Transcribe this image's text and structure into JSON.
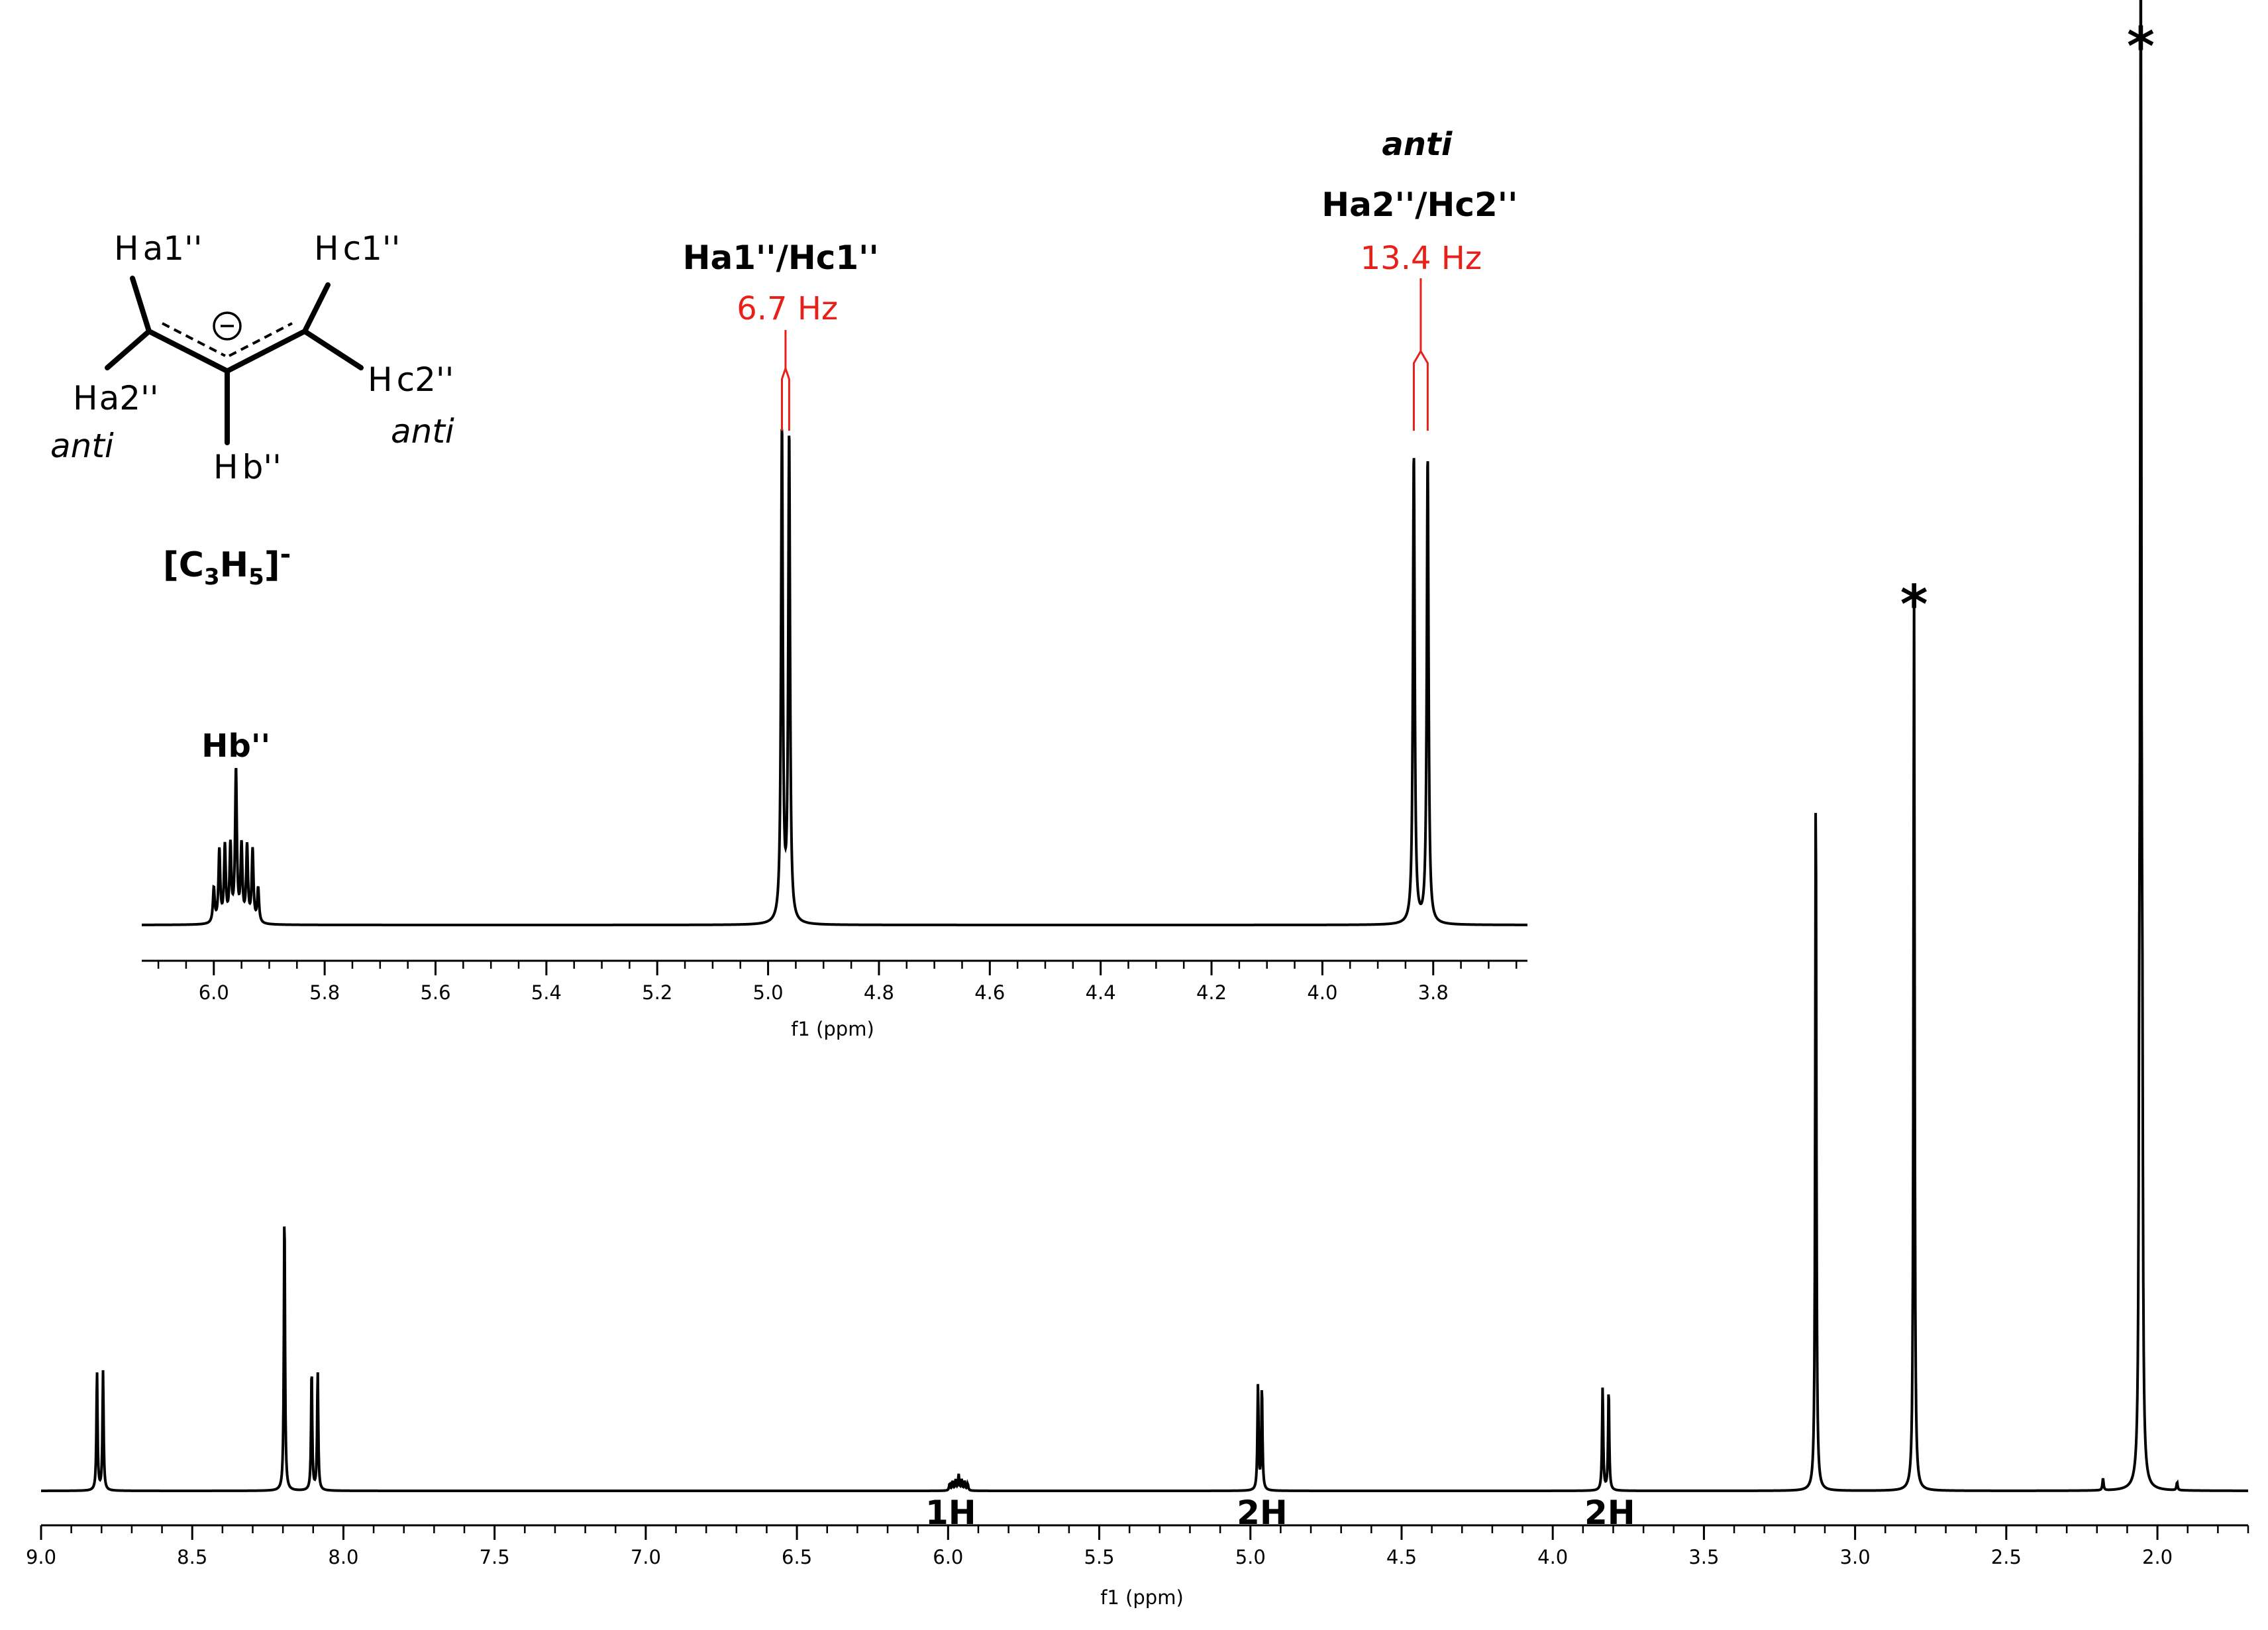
{
  "chart_data": [
    {
      "id": "main",
      "type": "line",
      "xlabel": "f1 (ppm)",
      "x_reversed": true,
      "xlim": [
        9.0,
        1.7
      ],
      "ticks_major": [
        9.0,
        8.5,
        8.0,
        7.5,
        7.0,
        6.5,
        6.0,
        5.5,
        5.0,
        4.5,
        4.0,
        3.5,
        3.0,
        2.5,
        2.0
      ],
      "tick_labels": [
        "9.0",
        "8.5",
        "8.0",
        "7.5",
        "7.0",
        "6.5",
        "6.0",
        "5.5",
        "5.0",
        "4.5",
        "4.0",
        "3.5",
        "3.0",
        "2.5",
        "2.0"
      ],
      "ylim": [
        0,
        1.0
      ],
      "peaks": [
        {
          "ppm": 8.815,
          "height": 0.18
        },
        {
          "ppm": 8.795,
          "height": 0.18
        },
        {
          "ppm": 8.195,
          "height": 0.428
        },
        {
          "ppm": 8.105,
          "height": 0.185
        },
        {
          "ppm": 8.085,
          "height": 0.18
        },
        {
          "ppm": 5.995,
          "height": 0.01
        },
        {
          "ppm": 5.985,
          "height": 0.014
        },
        {
          "ppm": 5.975,
          "height": 0.016
        },
        {
          "ppm": 5.965,
          "height": 0.024
        },
        {
          "ppm": 5.955,
          "height": 0.016
        },
        {
          "ppm": 5.945,
          "height": 0.014
        },
        {
          "ppm": 5.935,
          "height": 0.01
        },
        {
          "ppm": 4.975,
          "height": 0.158
        },
        {
          "ppm": 4.962,
          "height": 0.156
        },
        {
          "ppm": 3.835,
          "height": 0.156
        },
        {
          "ppm": 3.815,
          "height": 0.154
        },
        {
          "ppm": 3.13,
          "height": 1.08
        },
        {
          "ppm": 2.805,
          "height": 1.37
        },
        {
          "ppm": 2.06,
          "height": 0.48
        },
        {
          "ppm": 2.055,
          "height": 2.3
        },
        {
          "ppm": 2.05,
          "height": 0.48
        },
        {
          "ppm": 2.18,
          "height": 0.018
        },
        {
          "ppm": 1.935,
          "height": 0.012
        }
      ],
      "integrations": [
        {
          "ppm": 6.0,
          "label": "1H"
        },
        {
          "ppm": 4.97,
          "label": "2H"
        },
        {
          "ppm": 3.82,
          "label": "2H"
        }
      ],
      "annotations": [
        {
          "ppm": 2.805,
          "label": "*"
        },
        {
          "ppm": 2.055,
          "label": "*"
        }
      ]
    },
    {
      "id": "inset",
      "type": "line",
      "xlabel": "f1 (ppm)",
      "x_reversed": true,
      "xlim": [
        6.13,
        3.63
      ],
      "ticks_major": [
        6.0,
        5.8,
        5.6,
        5.4,
        5.2,
        5.0,
        4.8,
        4.6,
        4.4,
        4.2,
        4.0,
        3.8
      ],
      "tick_labels": [
        "6.0",
        "5.8",
        "5.6",
        "5.4",
        "5.2",
        "5.0",
        "4.8",
        "4.6",
        "4.4",
        "4.2",
        "4.0",
        "3.8"
      ],
      "peaks": [
        {
          "ppm": 6.0,
          "height": 0.055
        },
        {
          "ppm": 5.99,
          "height": 0.115
        },
        {
          "ppm": 5.98,
          "height": 0.12
        },
        {
          "ppm": 5.97,
          "height": 0.12
        },
        {
          "ppm": 5.96,
          "height": 0.24
        },
        {
          "ppm": 5.95,
          "height": 0.12
        },
        {
          "ppm": 5.94,
          "height": 0.12
        },
        {
          "ppm": 5.93,
          "height": 0.115
        },
        {
          "ppm": 5.92,
          "height": 0.055
        },
        {
          "ppm": 4.975,
          "height": 0.78
        },
        {
          "ppm": 4.962,
          "height": 0.77
        },
        {
          "ppm": 3.835,
          "height": 0.745
        },
        {
          "ppm": 3.81,
          "height": 0.74
        }
      ],
      "labels": [
        {
          "ppm": 5.96,
          "text": "Hb''"
        },
        {
          "ppm": 4.97,
          "text": "Ha1''/Hc1''",
          "coupling": "6.7 Hz"
        },
        {
          "ppm": 3.822,
          "text": "Ha2''/Hc2''",
          "coupling": "13.4 Hz",
          "prefix": "anti"
        }
      ]
    }
  ],
  "structure": {
    "ha1": "H",
    "ha1_sub": "a1''",
    "hc1": "H",
    "hc1_sub": "c1''",
    "ha2": "H",
    "ha2_sub": "a2''",
    "hc2": "H",
    "hc2_sub": "c2''",
    "hb": "H",
    "hb_sub": "b''",
    "anti_left": "anti",
    "anti_right": "anti",
    "charge": "⊖",
    "formula_open": "[C",
    "formula_sub3": "3",
    "formula_h": "H",
    "formula_sub5": "5",
    "formula_close": "]",
    "formula_sup": "-"
  }
}
